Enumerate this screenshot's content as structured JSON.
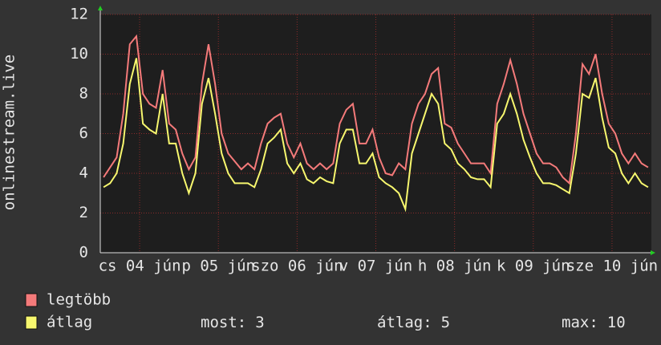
{
  "chart_data": {
    "type": "line",
    "y_label": "onlinestream.live",
    "xlim": [
      0,
      84
    ],
    "xticks": [
      {
        "value": 6,
        "label": "cs 04 jún"
      },
      {
        "value": 18,
        "label": "p 05 jún"
      },
      {
        "value": 30,
        "label": "szo 06 jún"
      },
      {
        "value": 42,
        "label": "v 07 jún"
      },
      {
        "value": 54,
        "label": "h 08 jún"
      },
      {
        "value": 66,
        "label": "k 09 jún"
      },
      {
        "value": 78,
        "label": "sze 10 jún"
      }
    ],
    "ylim": [
      0,
      12
    ],
    "yticks": [
      0,
      2,
      4,
      6,
      8,
      10,
      12
    ],
    "grid": true,
    "series": [
      {
        "name": "legtöbb",
        "color": "#f47a7a",
        "values": [
          3.8,
          4.3,
          4.8,
          7,
          10.5,
          10.9,
          8,
          7.5,
          7.3,
          9.2,
          6.5,
          6.2,
          5,
          4.2,
          4.8,
          8.5,
          10.5,
          8.5,
          6,
          5,
          4.6,
          4.2,
          4.5,
          4.2,
          5.5,
          6.5,
          6.8,
          7,
          5.5,
          4.8,
          5.5,
          4.5,
          4.2,
          4.5,
          4.2,
          4.5,
          6.5,
          7.2,
          7.5,
          5.5,
          5.5,
          6.2,
          4.8,
          4,
          3.9,
          4.5,
          4.2,
          6.5,
          7.5,
          8,
          9,
          9.3,
          6.5,
          6.3,
          5.5,
          5,
          4.5,
          4.5,
          4.5,
          4,
          7.5,
          8.5,
          9.7,
          8.5,
          7,
          6,
          5,
          4.5,
          4.5,
          4.3,
          3.8,
          3.5,
          6,
          9.5,
          9,
          10,
          8,
          6.5,
          6,
          5,
          4.5,
          5,
          4.5,
          4.3
        ]
      },
      {
        "name": "átlag",
        "color": "#f7f76e",
        "values": [
          3.3,
          3.5,
          4,
          5.5,
          8.5,
          9.8,
          6.5,
          6.2,
          6,
          8,
          5.5,
          5.5,
          4,
          3,
          4,
          7.5,
          8.8,
          7,
          5,
          4,
          3.5,
          3.5,
          3.5,
          3.3,
          4.2,
          5.5,
          5.8,
          6.2,
          4.5,
          4,
          4.5,
          3.7,
          3.5,
          3.8,
          3.6,
          3.5,
          5.5,
          6.2,
          6.2,
          4.5,
          4.5,
          5,
          3.8,
          3.5,
          3.3,
          3,
          2.2,
          5,
          6,
          7,
          8,
          7.5,
          5.5,
          5.2,
          4.5,
          4.2,
          3.8,
          3.7,
          3.7,
          3.3,
          6.5,
          7,
          8,
          7,
          5.7,
          4.8,
          4,
          3.5,
          3.5,
          3.4,
          3.2,
          3,
          5,
          8,
          7.8,
          8.8,
          6.8,
          5.3,
          5,
          4,
          3.5,
          4,
          3.5,
          3.3
        ]
      }
    ],
    "stats": [
      {
        "label": "most:",
        "value": 3
      },
      {
        "label": "átlag:",
        "value": 5
      },
      {
        "label": "max:",
        "value": 10
      }
    ]
  }
}
